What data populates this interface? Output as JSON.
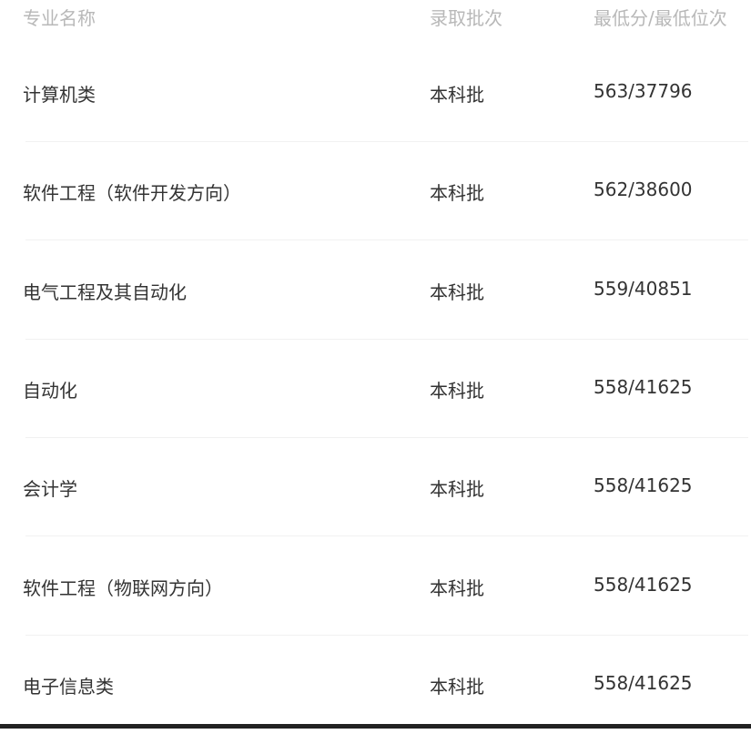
{
  "header": {
    "major": "专业名称",
    "batch": "录取批次",
    "score_rank": "最低分/最低位次"
  },
  "rows": [
    {
      "major": "计算机类",
      "batch": "本科批",
      "score_rank": "563/37796"
    },
    {
      "major": "软件工程（软件开发方向）",
      "batch": "本科批",
      "score_rank": "562/38600"
    },
    {
      "major": "电气工程及其自动化",
      "batch": "本科批",
      "score_rank": "559/40851"
    },
    {
      "major": "自动化",
      "batch": "本科批",
      "score_rank": "558/41625"
    },
    {
      "major": "会计学",
      "batch": "本科批",
      "score_rank": "558/41625"
    },
    {
      "major": "软件工程（物联网方向）",
      "batch": "本科批",
      "score_rank": "558/41625"
    },
    {
      "major": "电子信息类",
      "batch": "本科批",
      "score_rank": "558/41625"
    }
  ]
}
